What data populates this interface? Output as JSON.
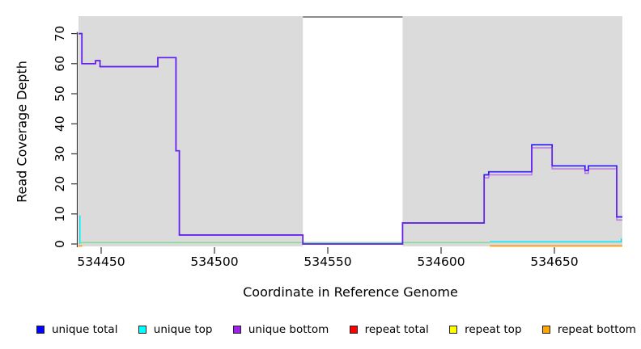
{
  "chart_data": {
    "type": "line",
    "title": "",
    "xlabel": "Coordinate in Reference Genome",
    "ylabel": "Read Coverage Depth",
    "xlim": [
      534440,
      534680
    ],
    "ylim": [
      -0.8,
      75.8
    ],
    "x_ticks": [
      534450,
      534500,
      534550,
      534600,
      534650
    ],
    "y_ticks": [
      0,
      10,
      20,
      30,
      40,
      50,
      60,
      70
    ],
    "grid": false,
    "legend_position": "bottom",
    "background_shading": {
      "color": "#DBDBDB",
      "regions": [
        [
          534440,
          534539
        ],
        [
          534583,
          534680
        ]
      ],
      "gap_top_border_color": "#8C8C8C"
    },
    "lines": [
      {
        "name": "unique-top-left-spike",
        "series": "unique top",
        "color": "#00E8F0",
        "width": 1.5,
        "opacity": 1,
        "points": [
          [
            534440.6,
            0
          ],
          [
            534440.6,
            9.5
          ]
        ]
      },
      {
        "name": "unique-top-repeat-top-overlap",
        "series": "unique top / repeat top",
        "color": "#85DC96",
        "width": 1.6,
        "opacity": 1,
        "points": [
          [
            534440.6,
            0.45
          ],
          [
            534621.5,
            0.45
          ]
        ]
      },
      {
        "name": "repeat-bottom-left",
        "series": "repeat bottom",
        "color": "#FF9E1F",
        "width": 2,
        "opacity": 1,
        "points": [
          [
            534440,
            -0.65
          ],
          [
            534441.6,
            -0.65
          ]
        ]
      },
      {
        "name": "repeat-bottom-right",
        "series": "repeat bottom",
        "color": "#FF9E1F",
        "width": 2,
        "opacity": 1,
        "points": [
          [
            534621.5,
            -0.65
          ],
          [
            534680,
            -0.65
          ]
        ]
      },
      {
        "name": "unique-top-right",
        "series": "unique top",
        "color": "#00E8F0",
        "width": 1.5,
        "opacity": 1,
        "points": [
          [
            534621.5,
            0.7
          ],
          [
            534679.5,
            0.7
          ],
          [
            534679.5,
            1.8
          ]
        ]
      },
      {
        "name": "unique-total",
        "series": "unique total",
        "color": "#2A1CEC",
        "width": 1.7,
        "opacity": 1,
        "points": [
          [
            534440,
            70
          ],
          [
            534441.5,
            70
          ],
          [
            534441.5,
            60
          ],
          [
            534447.5,
            60
          ],
          [
            534447.5,
            61
          ],
          [
            534449.5,
            61
          ],
          [
            534449.5,
            59
          ],
          [
            534475,
            59
          ],
          [
            534475,
            62
          ],
          [
            534483,
            62
          ],
          [
            534483,
            31
          ],
          [
            534484.5,
            31
          ],
          [
            534484.5,
            3
          ],
          [
            534539,
            3
          ],
          [
            534539,
            0
          ],
          [
            534583,
            0
          ],
          [
            534583,
            7
          ],
          [
            534619,
            7
          ],
          [
            534619,
            23
          ],
          [
            534621,
            23
          ],
          [
            534621,
            24
          ],
          [
            534640,
            24
          ],
          [
            534640,
            33
          ],
          [
            534649,
            33
          ],
          [
            534649,
            26
          ],
          [
            534663.5,
            26
          ],
          [
            534663.5,
            24.5
          ],
          [
            534665,
            24.5
          ],
          [
            534665,
            26
          ],
          [
            534677.5,
            26
          ],
          [
            534677.5,
            9
          ],
          [
            534680,
            9
          ]
        ]
      },
      {
        "name": "unique-bottom",
        "series": "unique bottom",
        "color": "#A020F0",
        "width": 1.6,
        "opacity": 0.5,
        "points": [
          [
            534440,
            70
          ],
          [
            534441.5,
            70
          ],
          [
            534441.5,
            60
          ],
          [
            534447.5,
            60
          ],
          [
            534447.5,
            61
          ],
          [
            534449.5,
            61
          ],
          [
            534449.5,
            59
          ],
          [
            534475,
            59
          ],
          [
            534475,
            62
          ],
          [
            534483,
            62
          ],
          [
            534483,
            31
          ],
          [
            534484.5,
            31
          ],
          [
            534484.5,
            3
          ],
          [
            534539,
            3
          ],
          [
            534539,
            0
          ],
          [
            534583,
            0
          ],
          [
            534583,
            7
          ],
          [
            534619,
            7
          ],
          [
            534619,
            22
          ],
          [
            534621,
            22
          ],
          [
            534621,
            23
          ],
          [
            534640,
            23
          ],
          [
            534640,
            32
          ],
          [
            534649,
            32
          ],
          [
            534649,
            25
          ],
          [
            534663.5,
            25
          ],
          [
            534663.5,
            23.5
          ],
          [
            534665,
            23.5
          ],
          [
            534665,
            25
          ],
          [
            534677.5,
            25
          ],
          [
            534677.5,
            8
          ],
          [
            534680,
            8
          ]
        ]
      }
    ]
  },
  "legend": {
    "items": [
      {
        "label": "unique total",
        "color": "#0000FF"
      },
      {
        "label": "unique top",
        "color": "#00FFFF"
      },
      {
        "label": "unique bottom",
        "color": "#A020F0"
      },
      {
        "label": "repeat total",
        "color": "#FF0000"
      },
      {
        "label": "repeat top",
        "color": "#FFFF00"
      },
      {
        "label": "repeat bottom",
        "color": "#FFA500"
      }
    ]
  },
  "axis": {
    "line_color": "#333333",
    "tick_color": "#333333",
    "tick_label_color": "#000000"
  }
}
